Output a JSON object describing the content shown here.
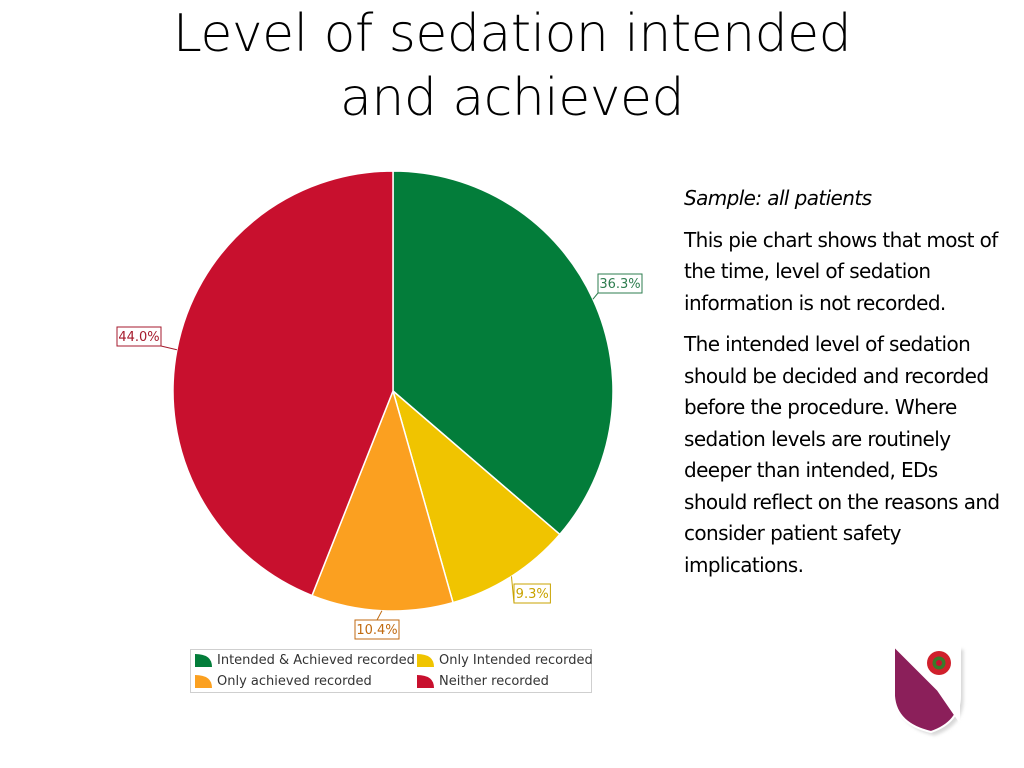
{
  "title": {
    "line1": "Level of sedation intended",
    "line2": "and achieved"
  },
  "side_text": {
    "sample": "Sample: all patients",
    "paragraph1": "This pie chart shows that most of the time, level of sedation information is not recorded.",
    "paragraph2": "The intended level of sedation should be decided and recorded before the procedure.  Where sedation levels are routinely deeper than intended, EDs should reflect on the reasons and consider patient safety implications."
  },
  "chart_data": {
    "type": "pie",
    "slices": [
      {
        "name": "Intended & Achieved recorded",
        "value": 36.3,
        "label": "36.3%",
        "color": "#037d3a",
        "label_color": "#2e7d4f"
      },
      {
        "name": "Only Intended recorded",
        "value": 9.3,
        "label": "9.3%",
        "color": "#f0c400",
        "label_color": "#c9a300"
      },
      {
        "name": "Only achieved recorded",
        "value": 10.4,
        "label": "10.4%",
        "color": "#fba020",
        "label_color": "#c06a10"
      },
      {
        "name": "Neither recorded",
        "value": 44.0,
        "label": "44.0%",
        "color": "#c8102e",
        "label_color": "#a51a2c"
      }
    ],
    "start": "12 o'clock",
    "direction": "clockwise",
    "legend": "bottom",
    "title": ""
  },
  "legend": {
    "items": [
      {
        "label": "Intended & Achieved recorded",
        "color": "#037d3a"
      },
      {
        "label": "Only Intended recorded",
        "color": "#f0c400"
      },
      {
        "label": "Only achieved recorded",
        "color": "#fba020"
      },
      {
        "label": "Neither recorded",
        "color": "#c8102e"
      }
    ]
  },
  "logo": {
    "name": "crest-logo",
    "colors": {
      "shield": "#8b1f5a",
      "rose": "#d0202c"
    }
  }
}
